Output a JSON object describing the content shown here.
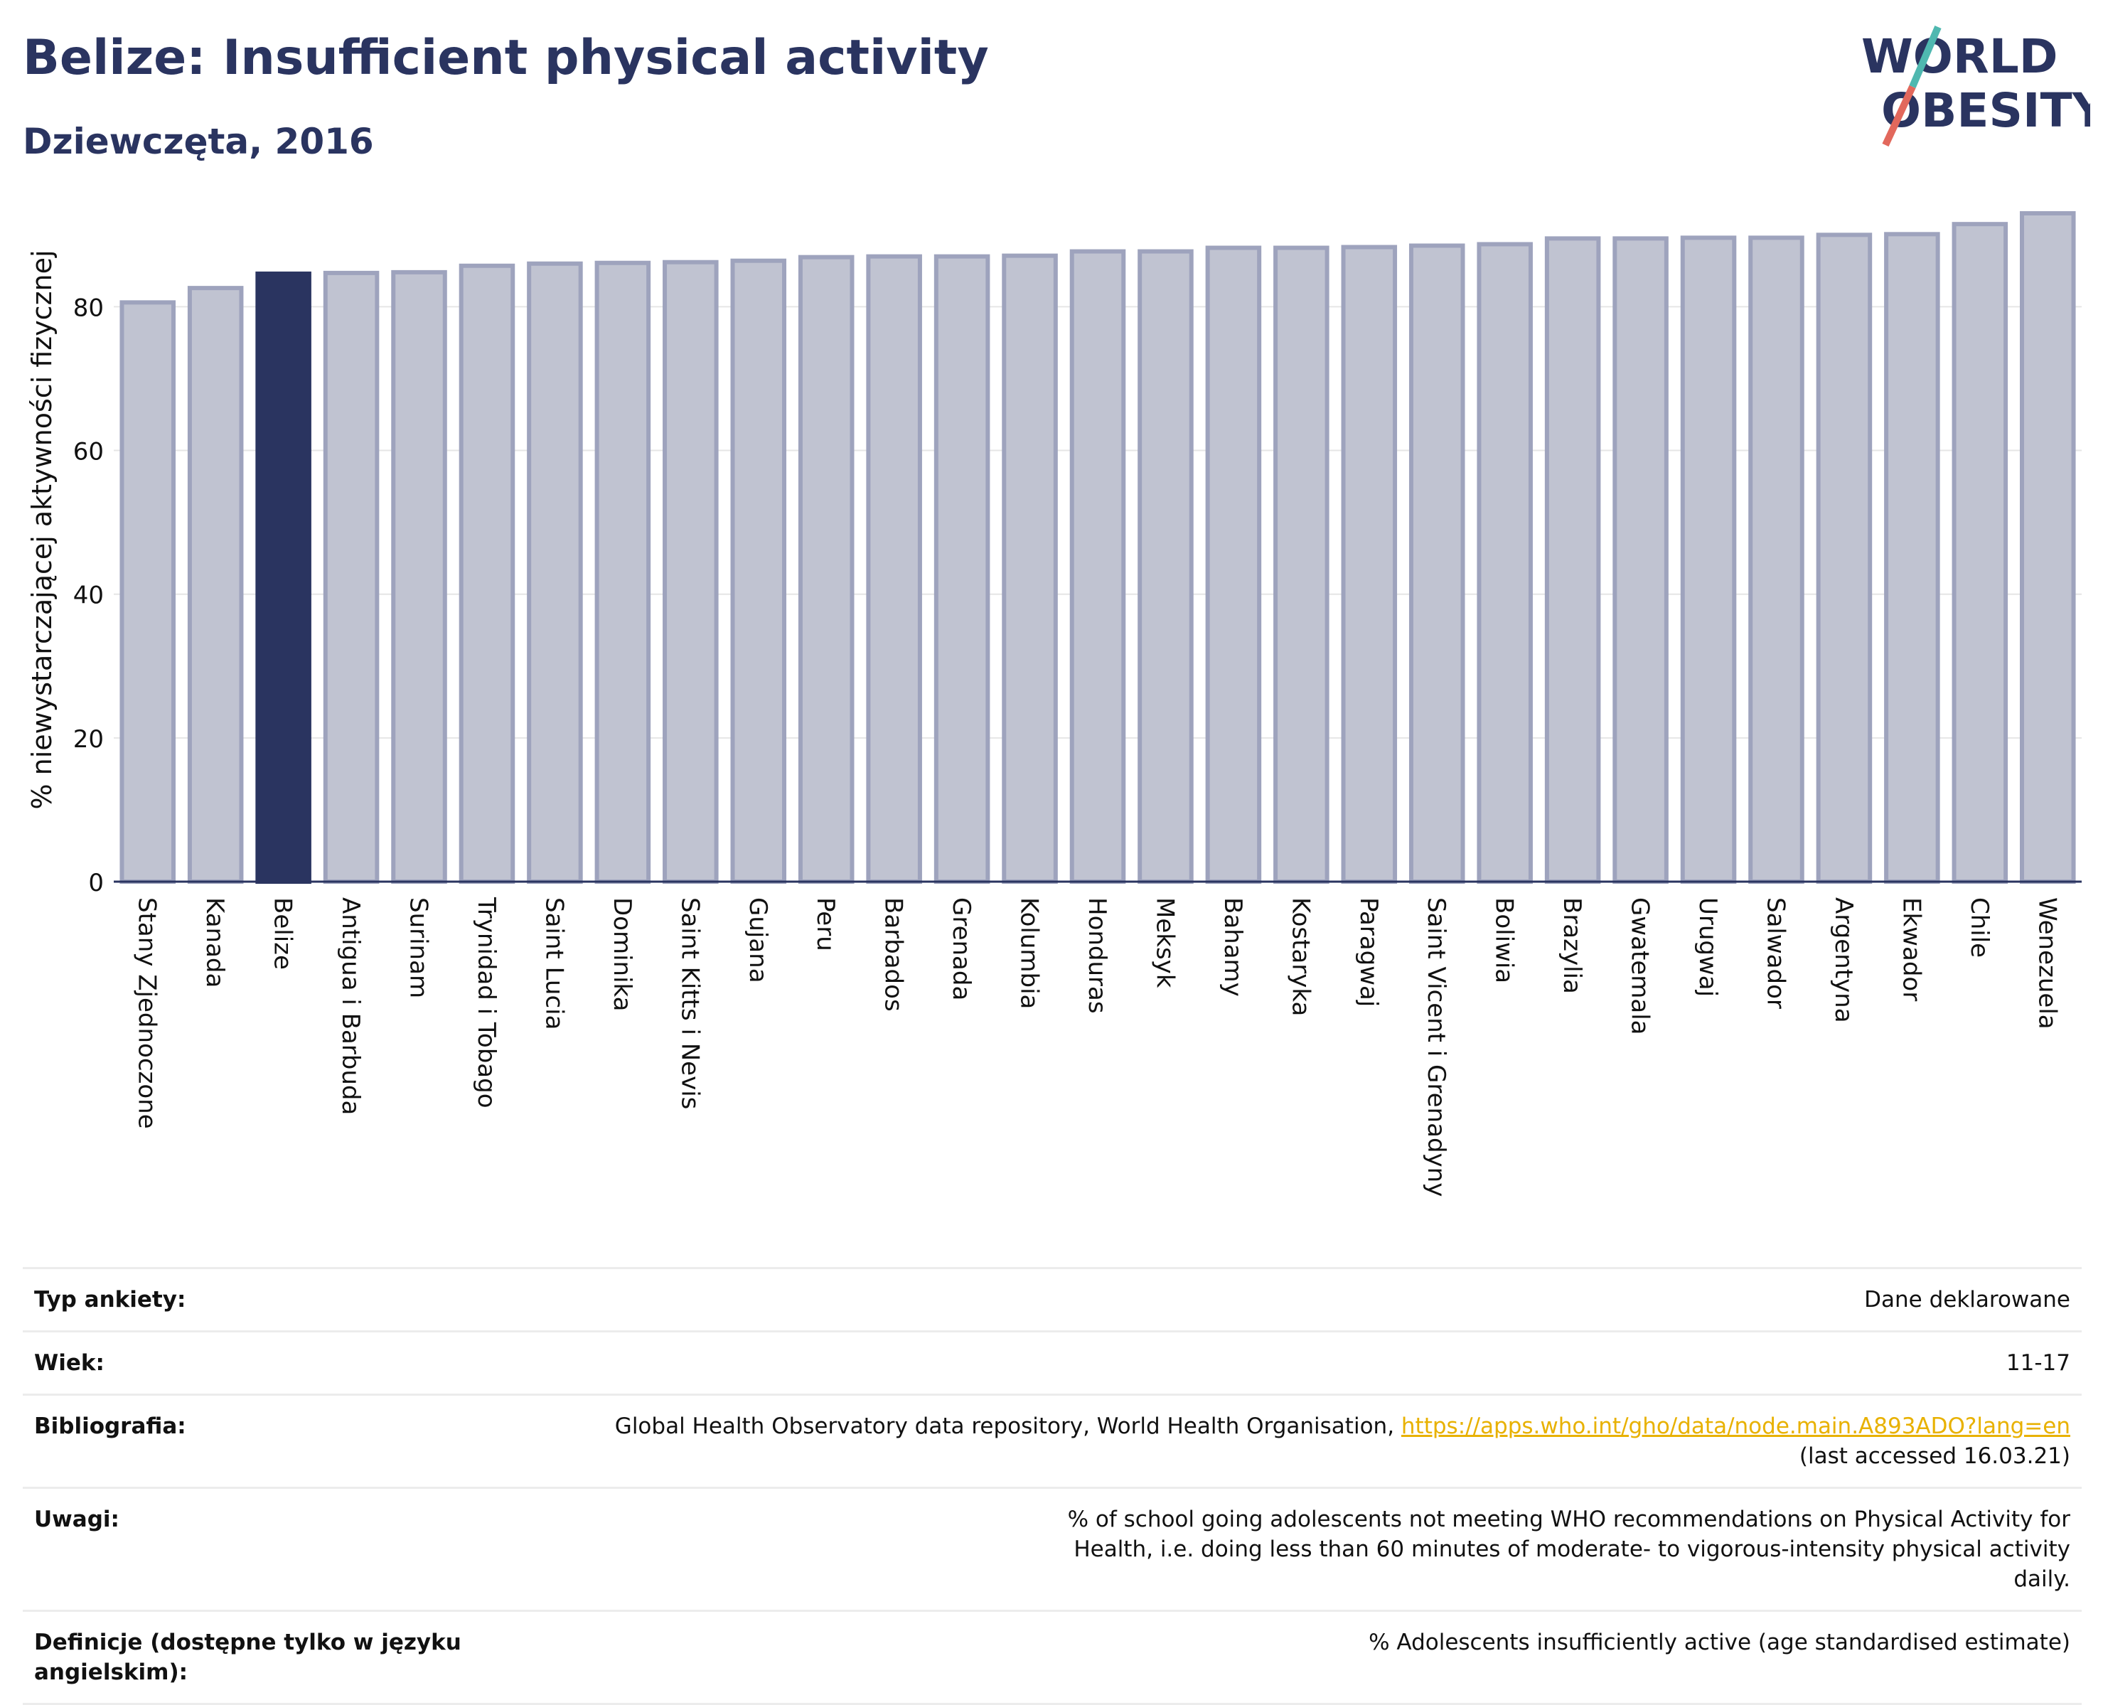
{
  "header": {
    "title": "Belize: Insufficient physical activity",
    "subtitle": "Dziewczęta, 2016"
  },
  "logo": {
    "line1": "WORLD",
    "line2": "OBESITY",
    "color": "#2a3460",
    "accent_teal": "#4fb8b0",
    "accent_red": "#e2685c"
  },
  "chart_data": {
    "type": "bar",
    "title": "",
    "xlabel": "",
    "ylabel": "% niewystarczającej aktywności fizycznej",
    "ylim": [
      0,
      93
    ],
    "yticks": [
      0,
      20,
      40,
      60,
      80
    ],
    "grid": true,
    "highlight": "Belize",
    "colors": {
      "bar": "#c0c3d1",
      "bar_edge": "#9ea3bd",
      "highlight": "#2a3460"
    },
    "categories": [
      "Stany Zjednoczone",
      "Kanada",
      "Belize",
      "Antigua i Barbuda",
      "Surinam",
      "Trynidad i Tobago",
      "Saint Lucia",
      "Dominika",
      "Saint Kitts i Nevis",
      "Gujana",
      "Peru",
      "Barbados",
      "Grenada",
      "Kolumbia",
      "Honduras",
      "Meksyk",
      "Bahamy",
      "Kostaryka",
      "Paragwaj",
      "Saint Vicent i Grenadyny",
      "Boliwia",
      "Brazylia",
      "Gwatemala",
      "Urugwaj",
      "Salwador",
      "Argentyna",
      "Ekwador",
      "Chile",
      "Wenezuela"
    ],
    "values": [
      80.6,
      82.6,
      84.6,
      84.7,
      84.8,
      85.7,
      86.0,
      86.1,
      86.2,
      86.4,
      86.9,
      87.0,
      87.0,
      87.1,
      87.7,
      87.7,
      88.2,
      88.2,
      88.3,
      88.5,
      88.7,
      89.5,
      89.5,
      89.6,
      89.6,
      90.0,
      90.1,
      91.5,
      93.0
    ]
  },
  "meta": [
    {
      "label": "Typ ankiety:",
      "value": "Dane deklarowane"
    },
    {
      "label": "Wiek:",
      "value": "11-17"
    },
    {
      "label": "Bibliografia:",
      "value": "Global Health Observatory data repository, World Health Organisation, ",
      "link": "https://apps.who.int/gho/data/node.main.A893ADO?lang=en",
      "value2": "(last accessed 16.03.21)"
    },
    {
      "label": "Uwagi:",
      "value": "% of school going adolescents not meeting WHO recommendations on Physical Activity for Health, i.e. doing less than 60 minutes of moderate- to vigorous-intensity physical activity daily."
    },
    {
      "label": "Definicje (dostępne tylko w języku angielskim):",
      "value": "% Adolescents insufficiently active (age standardised estimate)"
    }
  ]
}
